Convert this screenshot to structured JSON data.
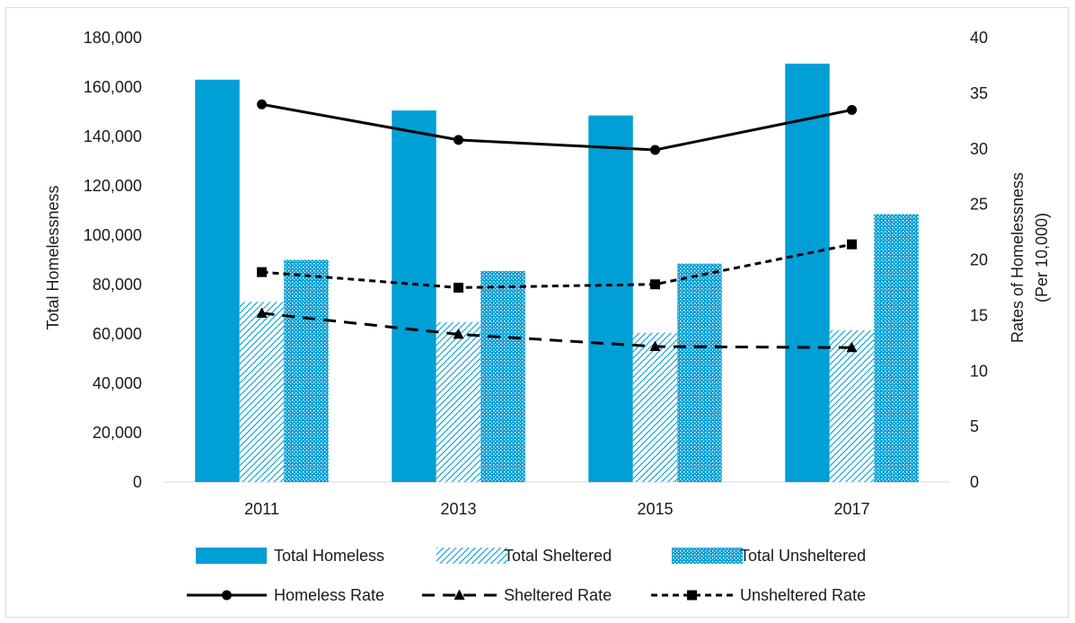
{
  "chart_data": {
    "type": "bar",
    "categories": [
      "2011",
      "2013",
      "2015",
      "2017"
    ],
    "series": [
      {
        "name": "Total Homeless",
        "kind": "bar",
        "axis": "left",
        "style": "solid",
        "color": "#009fd6",
        "values": [
          163000,
          150500,
          148500,
          169500
        ]
      },
      {
        "name": "Total Sheltered",
        "kind": "bar",
        "axis": "left",
        "style": "diagonal-hatch",
        "color": "#009fd6",
        "values": [
          73000,
          64800,
          60500,
          61500
        ]
      },
      {
        "name": "Total Unsheltered",
        "kind": "bar",
        "axis": "left",
        "style": "dotted-fill",
        "color": "#009fd6",
        "values": [
          90000,
          85500,
          88500,
          108500
        ]
      },
      {
        "name": "Homeless Rate",
        "kind": "line",
        "axis": "right",
        "style": "solid",
        "marker": "circle",
        "color": "#000000",
        "values": [
          34.0,
          30.8,
          29.9,
          33.5
        ]
      },
      {
        "name": "Sheltered Rate",
        "kind": "line",
        "axis": "right",
        "style": "long-dash",
        "marker": "triangle",
        "color": "#000000",
        "values": [
          15.2,
          13.3,
          12.2,
          12.1
        ]
      },
      {
        "name": "Unsheltered Rate",
        "kind": "line",
        "axis": "right",
        "style": "short-dash",
        "marker": "square",
        "color": "#000000",
        "values": [
          18.9,
          17.5,
          17.8,
          21.4
        ]
      }
    ],
    "ylabel_left": "Total Homelessness",
    "ylabel_right_lines": [
      "Rates of Homelessness",
      "(Per 10,000)"
    ],
    "ylim_left": [
      0,
      180000
    ],
    "ylim_right": [
      0,
      40
    ],
    "yticks_left": [
      "0",
      "20,000",
      "40,000",
      "60,000",
      "80,000",
      "100,000",
      "120,000",
      "140,000",
      "160,000",
      "180,000"
    ],
    "yticks_right": [
      "0",
      "5",
      "10",
      "15",
      "20",
      "25",
      "30",
      "35",
      "40"
    ],
    "grid": false,
    "legend_position": "bottom"
  }
}
